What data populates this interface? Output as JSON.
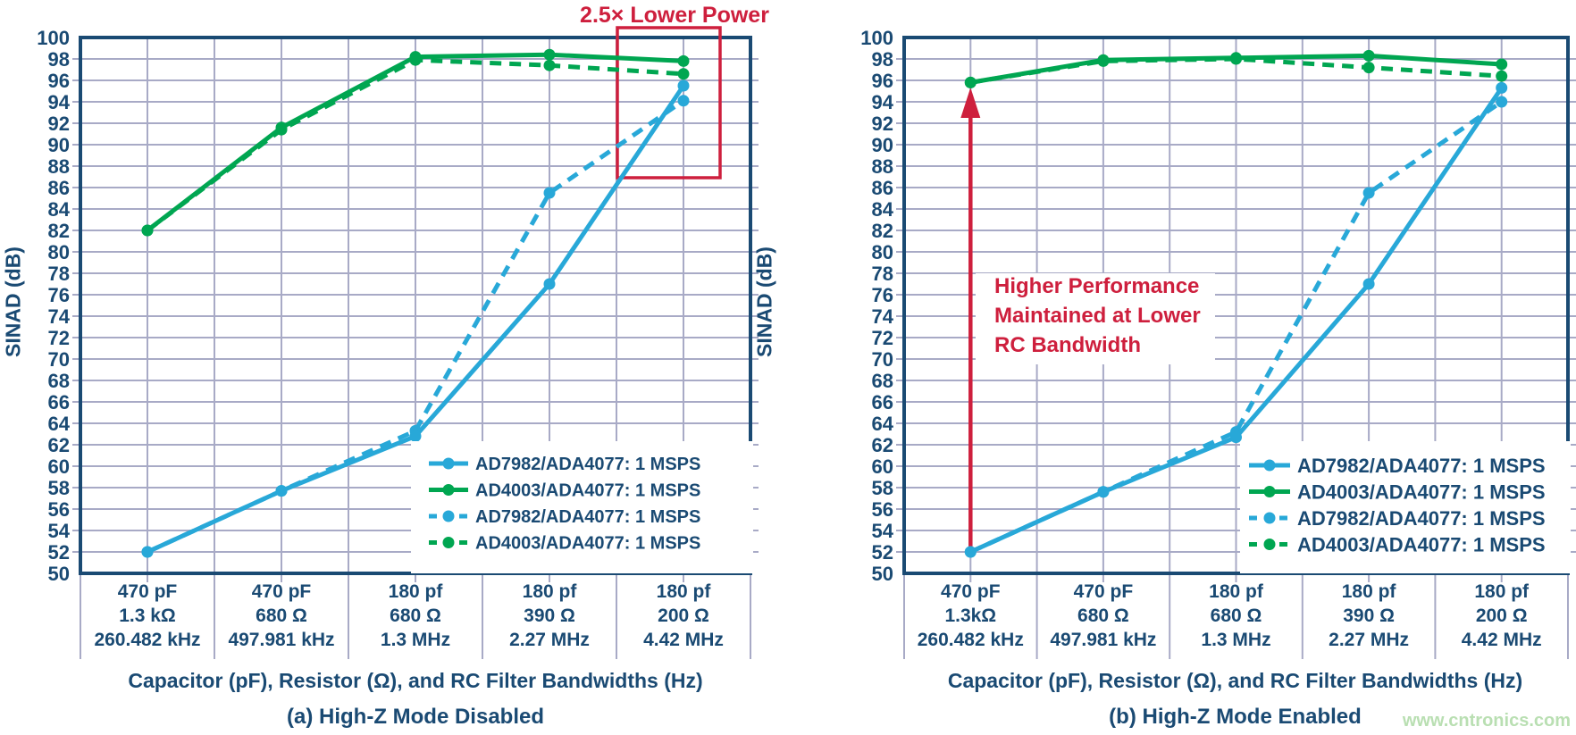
{
  "figure": {
    "watermark": "www.cntronics.com"
  },
  "colors": {
    "navy": "#1a4a73",
    "cyan": "#28a8d8",
    "green": "#00a651",
    "red": "#ce1f3d",
    "grid": "#a8aac6",
    "legend_bg": "#ffffff",
    "watermark_green": "#b9dfb2"
  },
  "chart_data": [
    {
      "type": "line",
      "title": "(a) High-Z Mode Disabled",
      "xlabel": "Capacitor (pF), Resistor (Ω), and RC Filter Bandwidths (Hz)",
      "ylabel": "SINAD (dB)",
      "ylim": [
        50,
        100
      ],
      "ytick_step": 2,
      "grid": true,
      "legend_position": "lower right",
      "categories": [
        [
          "470 pF",
          "1.3 kΩ",
          "260.482 kHz"
        ],
        [
          "470 pF",
          "680 Ω",
          "497.981 kHz"
        ],
        [
          "180 pf",
          "680 Ω",
          "1.3 MHz"
        ],
        [
          "180 pf",
          "390 Ω",
          "2.27 MHz"
        ],
        [
          "180 pf",
          "200 Ω",
          "4.42 MHz"
        ]
      ],
      "series": [
        {
          "name": "AD7982/ADA4077: 1 MSPS",
          "color": "cyan",
          "style": "solid",
          "values": [
            52.0,
            57.7,
            62.8,
            77.0,
            95.5
          ]
        },
        {
          "name": "AD4003/ADA4077: 1 MSPS",
          "color": "green",
          "style": "solid",
          "values": [
            82.0,
            91.6,
            98.2,
            98.4,
            97.8
          ]
        },
        {
          "name": "AD7982/ADA4077: 1 MSPS",
          "color": "cyan",
          "style": "dashed",
          "values": [
            52.0,
            57.7,
            63.3,
            85.5,
            94.1
          ]
        },
        {
          "name": "AD4003/ADA4077: 1 MSPS",
          "color": "green",
          "style": "dashed",
          "values": [
            82.0,
            91.4,
            97.9,
            97.4,
            96.6
          ]
        }
      ],
      "annotations": [
        {
          "kind": "label",
          "text": "2.5× Lower Power"
        },
        {
          "kind": "box"
        }
      ]
    },
    {
      "type": "line",
      "title": "(b) High-Z Mode Enabled",
      "xlabel": "Capacitor (pF), Resistor (Ω), and RC Filter Bandwidths (Hz)",
      "ylabel": "SINAD (dB)",
      "ylim": [
        50,
        100
      ],
      "ytick_step": 2,
      "grid": true,
      "legend_position": "lower right",
      "categories": [
        [
          "470 pF",
          "1.3kΩ",
          "260.482 kHz"
        ],
        [
          "470 pF",
          "680 Ω",
          "497.981 kHz"
        ],
        [
          "180 pf",
          "680 Ω",
          "1.3 MHz"
        ],
        [
          "180 pf",
          "390 Ω",
          "2.27 MHz"
        ],
        [
          "180 pf",
          "200 Ω",
          "4.42 MHz"
        ]
      ],
      "series": [
        {
          "name": "AD7982/ADA4077: 1 MSPS",
          "color": "cyan",
          "style": "solid",
          "values": [
            52.0,
            57.6,
            62.7,
            77.0,
            95.3
          ]
        },
        {
          "name": "AD4003/ADA4077: 1 MSPS",
          "color": "green",
          "style": "solid",
          "values": [
            95.8,
            97.9,
            98.1,
            98.3,
            97.5
          ]
        },
        {
          "name": "AD7982/ADA4077: 1 MSPS",
          "color": "cyan",
          "style": "dashed",
          "values": [
            52.0,
            57.6,
            63.2,
            85.5,
            94.0
          ]
        },
        {
          "name": "AD4003/ADA4077: 1 MSPS",
          "color": "green",
          "style": "dashed",
          "values": [
            95.8,
            97.8,
            98.0,
            97.2,
            96.4
          ]
        }
      ],
      "annotations": [
        {
          "kind": "arrow"
        },
        {
          "kind": "text-block",
          "lines": [
            "Higher Performance",
            "Maintained at Lower",
            "RC Bandwidth"
          ]
        }
      ]
    }
  ]
}
